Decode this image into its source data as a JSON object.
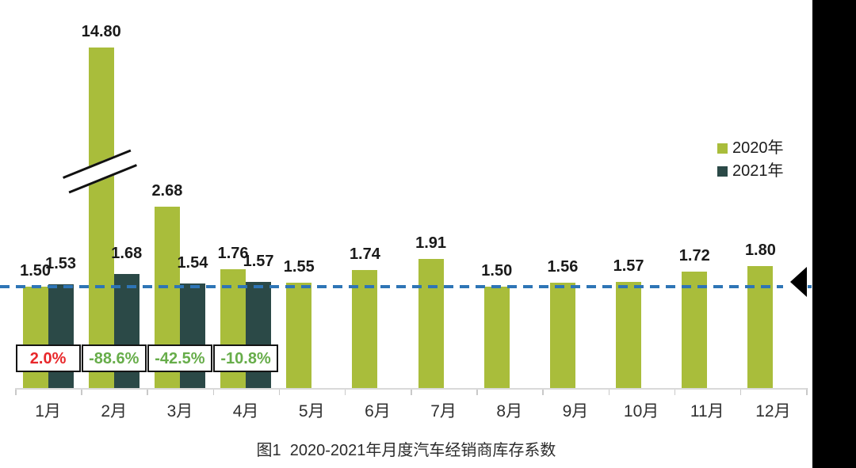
{
  "chart_data": {
    "type": "bar",
    "title": "图1  2020-2021年月度汽车经销商库存系数",
    "categories": [
      "1月",
      "2月",
      "3月",
      "4月",
      "5月",
      "6月",
      "7月",
      "8月",
      "9月",
      "10月",
      "11月",
      "12月"
    ],
    "series": [
      {
        "name": "2020年",
        "color": "#a9bd3b",
        "values": [
          1.5,
          14.8,
          2.68,
          1.76,
          1.55,
          1.74,
          1.91,
          1.5,
          1.56,
          1.57,
          1.72,
          1.8
        ]
      },
      {
        "name": "2021年",
        "color": "#2b4947",
        "values": [
          1.53,
          1.68,
          1.54,
          1.57,
          null,
          null,
          null,
          null,
          null,
          null,
          null,
          null
        ]
      }
    ],
    "value_label_format": "0.00",
    "yoy_labels": [
      {
        "text": "2.0%",
        "color": "#e8282b"
      },
      {
        "text": "-88.6%",
        "color": "#67ad4a"
      },
      {
        "text": "-42.5%",
        "color": "#67ad4a"
      },
      {
        "text": "-10.8%",
        "color": "#67ad4a"
      }
    ],
    "reference_line": {
      "value": 1.5,
      "style": "dashed",
      "color": "#2e75b6",
      "marker": "left-pointing-black-triangle"
    },
    "axis_break": {
      "series": "2020年",
      "category": "2月"
    },
    "legend": {
      "position": "center-right",
      "entries": [
        "2020年",
        "2021年"
      ]
    },
    "x_axis": {
      "line": true,
      "tick_marks": true
    },
    "y_axis": {
      "visible": false
    },
    "grid": false
  }
}
